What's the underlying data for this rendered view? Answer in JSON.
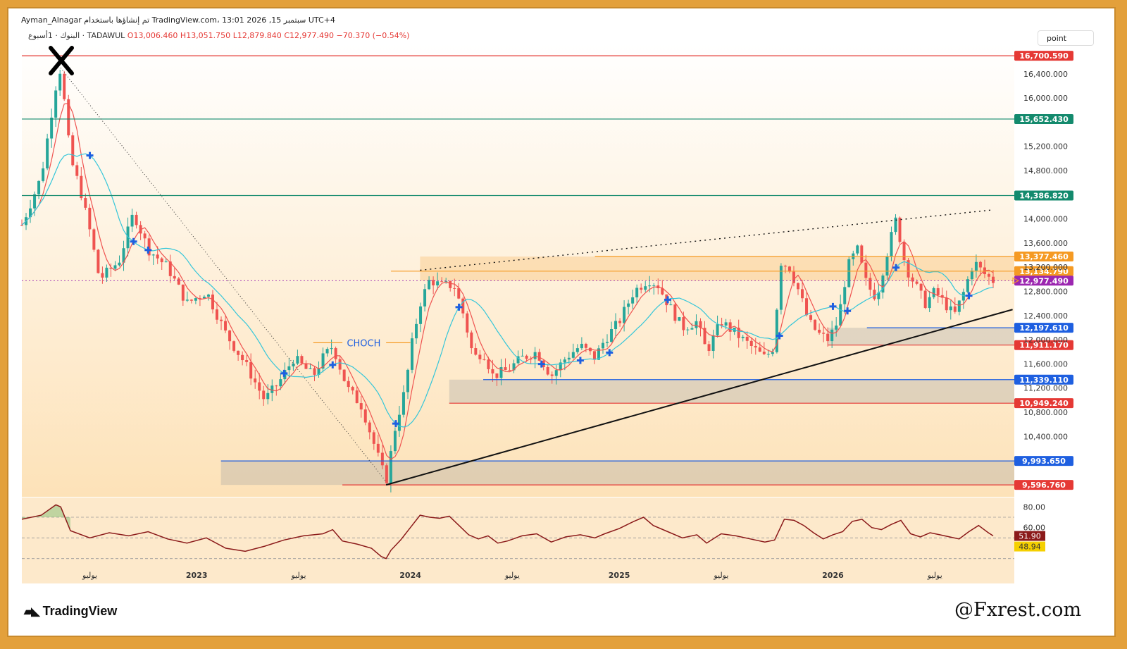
{
  "header": {
    "title_line": "Ayman_Alnagar تم إنشاؤها باستخدام TradingView.com، 13:01 2026 ,15 سبتمبر UTC+4",
    "symbol": "البنوك · 1أسبوع · TADAWUL",
    "open": "O13,006.460",
    "high": "H13,051.750",
    "low": "L12,879.840",
    "close": "C12,977.490",
    "change": "−70.370 (−0.54%)"
  },
  "toolbar": {
    "point_label": "point"
  },
  "chart_data": {
    "type": "candlestick",
    "price_axis": {
      "min": 9400,
      "max": 16900,
      "ticks": [
        {
          "label": "16,400.000",
          "value": 16400
        },
        {
          "label": "16,000.000",
          "value": 16000
        },
        {
          "label": "15,200.000",
          "value": 15200
        },
        {
          "label": "14,800.000",
          "value": 14800
        },
        {
          "label": "14,000.000",
          "value": 14000
        },
        {
          "label": "13,600.000",
          "value": 13600
        },
        {
          "label": "13,200.000",
          "value": 13200
        },
        {
          "label": "12,800.000",
          "value": 12800
        },
        {
          "label": "12,400.000",
          "value": 12400
        },
        {
          "label": "12,000.000",
          "value": 12000
        },
        {
          "label": "11,600.000",
          "value": 11600
        },
        {
          "label": "11,200.000",
          "value": 11200
        },
        {
          "label": "10,800.000",
          "value": 10800
        },
        {
          "label": "10,400.000",
          "value": 10400
        }
      ]
    },
    "levels": [
      {
        "label": "16,700.590",
        "value": 16700.59,
        "color": "#e53935",
        "bg": "#e53935"
      },
      {
        "label": "15,652.430",
        "value": 15652.43,
        "color": "#138a6d",
        "bg": "#138a6d"
      },
      {
        "label": "14,386.820",
        "value": 14386.82,
        "color": "#138a6d",
        "bg": "#138a6d"
      },
      {
        "label": "13,377.460",
        "value": 13377.46,
        "color": "#f59a23",
        "bg": "#f59a23"
      },
      {
        "label": "13,134.790",
        "value": 13134.79,
        "color": "#f59a23",
        "bg": "#f59a23"
      },
      {
        "label": "12,977.490",
        "value": 12977.49,
        "color": "#9c27b0",
        "bg": "#9c27b0"
      },
      {
        "label": "12,197.610",
        "value": 12197.61,
        "color": "#1e5fe0",
        "bg": "#1e5fe0"
      },
      {
        "label": "11,911.170",
        "value": 11911.17,
        "color": "#e53935",
        "bg": "#e53935"
      },
      {
        "label": "11,339.110",
        "value": 11339.11,
        "color": "#1e5fe0",
        "bg": "#1e5fe0"
      },
      {
        "label": "10,949.240",
        "value": 10949.24,
        "color": "#e53935",
        "bg": "#e53935"
      },
      {
        "label": "9,993.650",
        "value": 9993.65,
        "color": "#1e5fe0",
        "bg": "#1e5fe0"
      },
      {
        "label": "9,596.760",
        "value": 9596.76,
        "color": "#e53935",
        "bg": "#e53935"
      }
    ],
    "annotations": [
      {
        "text": "CHOCH",
        "color": "#1e5fe0"
      }
    ],
    "time_axis": {
      "labels": [
        {
          "text": "يوليو",
          "t": 0.07
        },
        {
          "text": "2023",
          "t": 0.18
        },
        {
          "text": "يوليو",
          "t": 0.285
        },
        {
          "text": "2024",
          "t": 0.4
        },
        {
          "text": "يوليو",
          "t": 0.505
        },
        {
          "text": "2025",
          "t": 0.615
        },
        {
          "text": "يوليو",
          "t": 0.72
        },
        {
          "text": "2026",
          "t": 0.835
        },
        {
          "text": "يوليو",
          "t": 0.94
        }
      ]
    },
    "rsi": {
      "min": 25,
      "max": 85,
      "ticks": [
        {
          "label": "80.00",
          "value": 80
        },
        {
          "label": "60.00",
          "value": 60
        },
        {
          "label": "40.00",
          "value": 40
        }
      ],
      "rsi_value": "51.90",
      "signal_value": "48.94"
    },
    "price_path": [
      [
        0.0,
        13900
      ],
      [
        0.02,
        14700
      ],
      [
        0.035,
        16200
      ],
      [
        0.04,
        16500
      ],
      [
        0.05,
        15000
      ],
      [
        0.06,
        14500
      ],
      [
        0.07,
        13800
      ],
      [
        0.08,
        13000
      ],
      [
        0.1,
        13300
      ],
      [
        0.115,
        14100
      ],
      [
        0.13,
        13500
      ],
      [
        0.15,
        13200
      ],
      [
        0.17,
        12600
      ],
      [
        0.19,
        12800
      ],
      [
        0.21,
        12100
      ],
      [
        0.23,
        11600
      ],
      [
        0.25,
        11000
      ],
      [
        0.265,
        11300
      ],
      [
        0.28,
        11700
      ],
      [
        0.3,
        11400
      ],
      [
        0.31,
        11700
      ],
      [
        0.32,
        11900
      ],
      [
        0.335,
        11200
      ],
      [
        0.35,
        10900
      ],
      [
        0.36,
        10400
      ],
      [
        0.37,
        9900
      ],
      [
        0.375,
        9650
      ],
      [
        0.385,
        10600
      ],
      [
        0.395,
        11200
      ],
      [
        0.4,
        11800
      ],
      [
        0.41,
        12600
      ],
      [
        0.42,
        13000
      ],
      [
        0.43,
        12900
      ],
      [
        0.445,
        12900
      ],
      [
        0.455,
        12400
      ],
      [
        0.465,
        11700
      ],
      [
        0.475,
        11800
      ],
      [
        0.485,
        11400
      ],
      [
        0.5,
        11500
      ],
      [
        0.515,
        11700
      ],
      [
        0.53,
        11800
      ],
      [
        0.545,
        11400
      ],
      [
        0.56,
        11700
      ],
      [
        0.575,
        11900
      ],
      [
        0.59,
        11700
      ],
      [
        0.6,
        12000
      ],
      [
        0.615,
        12300
      ],
      [
        0.63,
        12800
      ],
      [
        0.645,
        13000
      ],
      [
        0.655,
        12900
      ],
      [
        0.665,
        12600
      ],
      [
        0.68,
        12200
      ],
      [
        0.695,
        12300
      ],
      [
        0.705,
        11800
      ],
      [
        0.72,
        12300
      ],
      [
        0.735,
        12100
      ],
      [
        0.75,
        11900
      ],
      [
        0.765,
        11700
      ],
      [
        0.775,
        11900
      ],
      [
        0.78,
        13300
      ],
      [
        0.79,
        13200
      ],
      [
        0.8,
        12800
      ],
      [
        0.81,
        12300
      ],
      [
        0.82,
        12100
      ],
      [
        0.83,
        12000
      ],
      [
        0.84,
        12300
      ],
      [
        0.85,
        13200
      ],
      [
        0.86,
        13500
      ],
      [
        0.87,
        12900
      ],
      [
        0.88,
        12700
      ],
      [
        0.89,
        13400
      ],
      [
        0.9,
        14000
      ],
      [
        0.91,
        13200
      ],
      [
        0.92,
        12900
      ],
      [
        0.93,
        12600
      ],
      [
        0.94,
        12800
      ],
      [
        0.95,
        12600
      ],
      [
        0.96,
        12400
      ],
      [
        0.97,
        12800
      ],
      [
        0.98,
        13300
      ],
      [
        0.99,
        13100
      ],
      [
        1.0,
        12977
      ]
    ],
    "rsi_path": [
      [
        0.0,
        68
      ],
      [
        0.02,
        72
      ],
      [
        0.035,
        82
      ],
      [
        0.04,
        80
      ],
      [
        0.05,
        57
      ],
      [
        0.07,
        50
      ],
      [
        0.09,
        55
      ],
      [
        0.11,
        52
      ],
      [
        0.13,
        56
      ],
      [
        0.15,
        49
      ],
      [
        0.17,
        45
      ],
      [
        0.19,
        50
      ],
      [
        0.21,
        40
      ],
      [
        0.23,
        37
      ],
      [
        0.25,
        42
      ],
      [
        0.27,
        48
      ],
      [
        0.29,
        52
      ],
      [
        0.31,
        54
      ],
      [
        0.32,
        58
      ],
      [
        0.33,
        47
      ],
      [
        0.345,
        44
      ],
      [
        0.36,
        40
      ],
      [
        0.37,
        32
      ],
      [
        0.375,
        30
      ],
      [
        0.38,
        38
      ],
      [
        0.39,
        48
      ],
      [
        0.4,
        60
      ],
      [
        0.41,
        72
      ],
      [
        0.42,
        70
      ],
      [
        0.43,
        69
      ],
      [
        0.44,
        71
      ],
      [
        0.45,
        62
      ],
      [
        0.46,
        53
      ],
      [
        0.47,
        49
      ],
      [
        0.48,
        52
      ],
      [
        0.49,
        45
      ],
      [
        0.5,
        47
      ],
      [
        0.515,
        52
      ],
      [
        0.53,
        54
      ],
      [
        0.545,
        46
      ],
      [
        0.56,
        51
      ],
      [
        0.575,
        53
      ],
      [
        0.59,
        50
      ],
      [
        0.6,
        54
      ],
      [
        0.615,
        59
      ],
      [
        0.63,
        66
      ],
      [
        0.64,
        70
      ],
      [
        0.65,
        62
      ],
      [
        0.665,
        56
      ],
      [
        0.68,
        50
      ],
      [
        0.695,
        53
      ],
      [
        0.705,
        45
      ],
      [
        0.72,
        54
      ],
      [
        0.735,
        52
      ],
      [
        0.75,
        49
      ],
      [
        0.765,
        46
      ],
      [
        0.775,
        48
      ],
      [
        0.785,
        68
      ],
      [
        0.795,
        67
      ],
      [
        0.805,
        62
      ],
      [
        0.815,
        55
      ],
      [
        0.825,
        49
      ],
      [
        0.835,
        53
      ],
      [
        0.845,
        56
      ],
      [
        0.855,
        66
      ],
      [
        0.865,
        68
      ],
      [
        0.875,
        60
      ],
      [
        0.885,
        58
      ],
      [
        0.895,
        63
      ],
      [
        0.905,
        67
      ],
      [
        0.915,
        54
      ],
      [
        0.925,
        51
      ],
      [
        0.935,
        55
      ],
      [
        0.945,
        53
      ],
      [
        0.955,
        51
      ],
      [
        0.965,
        49
      ],
      [
        0.975,
        56
      ],
      [
        0.985,
        62
      ],
      [
        0.995,
        55
      ],
      [
        1.0,
        52
      ]
    ],
    "marker_ts": [
      0.07,
      0.115,
      0.13,
      0.27,
      0.32,
      0.385,
      0.45,
      0.535,
      0.575,
      0.605,
      0.665,
      0.78,
      0.835,
      0.85,
      0.9,
      0.975
    ]
  }
}
